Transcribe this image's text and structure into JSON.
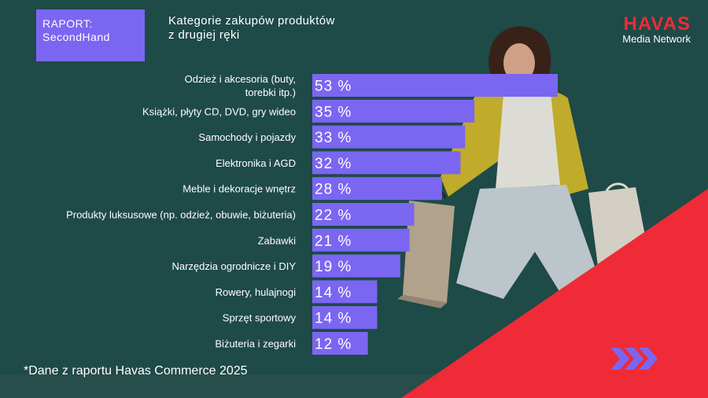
{
  "badge": {
    "line1": "RAPORT:",
    "line2": "SecondHand"
  },
  "subtitle": {
    "line1": "Kategorie zakupów produktów",
    "line2": "z drugiej ręki"
  },
  "brand": {
    "name": "HAVAS",
    "sub": "Media Network"
  },
  "footnote": "*Dane z raportu Havas Commerce 2025",
  "colors": {
    "bar": "#7b66f2",
    "background": "#1e4a47",
    "accent_red": "#ee2b36",
    "arrows": "#7b66f2"
  },
  "chart_data": {
    "type": "bar",
    "orientation": "horizontal",
    "categories": [
      [
        "Odzież i akcesoria (buty,",
        "torebki itp.)"
      ],
      [
        "Książki, płyty CD, DVD, gry wideo"
      ],
      [
        "Samochody i pojazdy"
      ],
      [
        "Elektronika i AGD"
      ],
      [
        "Meble i dekoracje wnętrz"
      ],
      [
        "Produkty luksusowe (np. odzież, obuwie, biżuteria)"
      ],
      [
        "Zabawki"
      ],
      [
        "Narzędzia ogrodnicze i DIY"
      ],
      [
        "Rowery, hulajnogi"
      ],
      [
        "Sprzęt sportowy"
      ],
      [
        "Biżuteria i zegarki"
      ]
    ],
    "values": [
      53,
      35,
      33,
      32,
      28,
      22,
      21,
      19,
      14,
      14,
      12
    ],
    "data_labels": [
      "53 %",
      "35 %",
      "33 %",
      "32 %",
      "28 %",
      "22 %",
      "21 %",
      "19 %",
      "14 %",
      "14 %",
      "12 %"
    ],
    "xlim": [
      0,
      60
    ],
    "grid": false,
    "legend": "none",
    "title": "",
    "xlabel": "",
    "ylabel": ""
  }
}
